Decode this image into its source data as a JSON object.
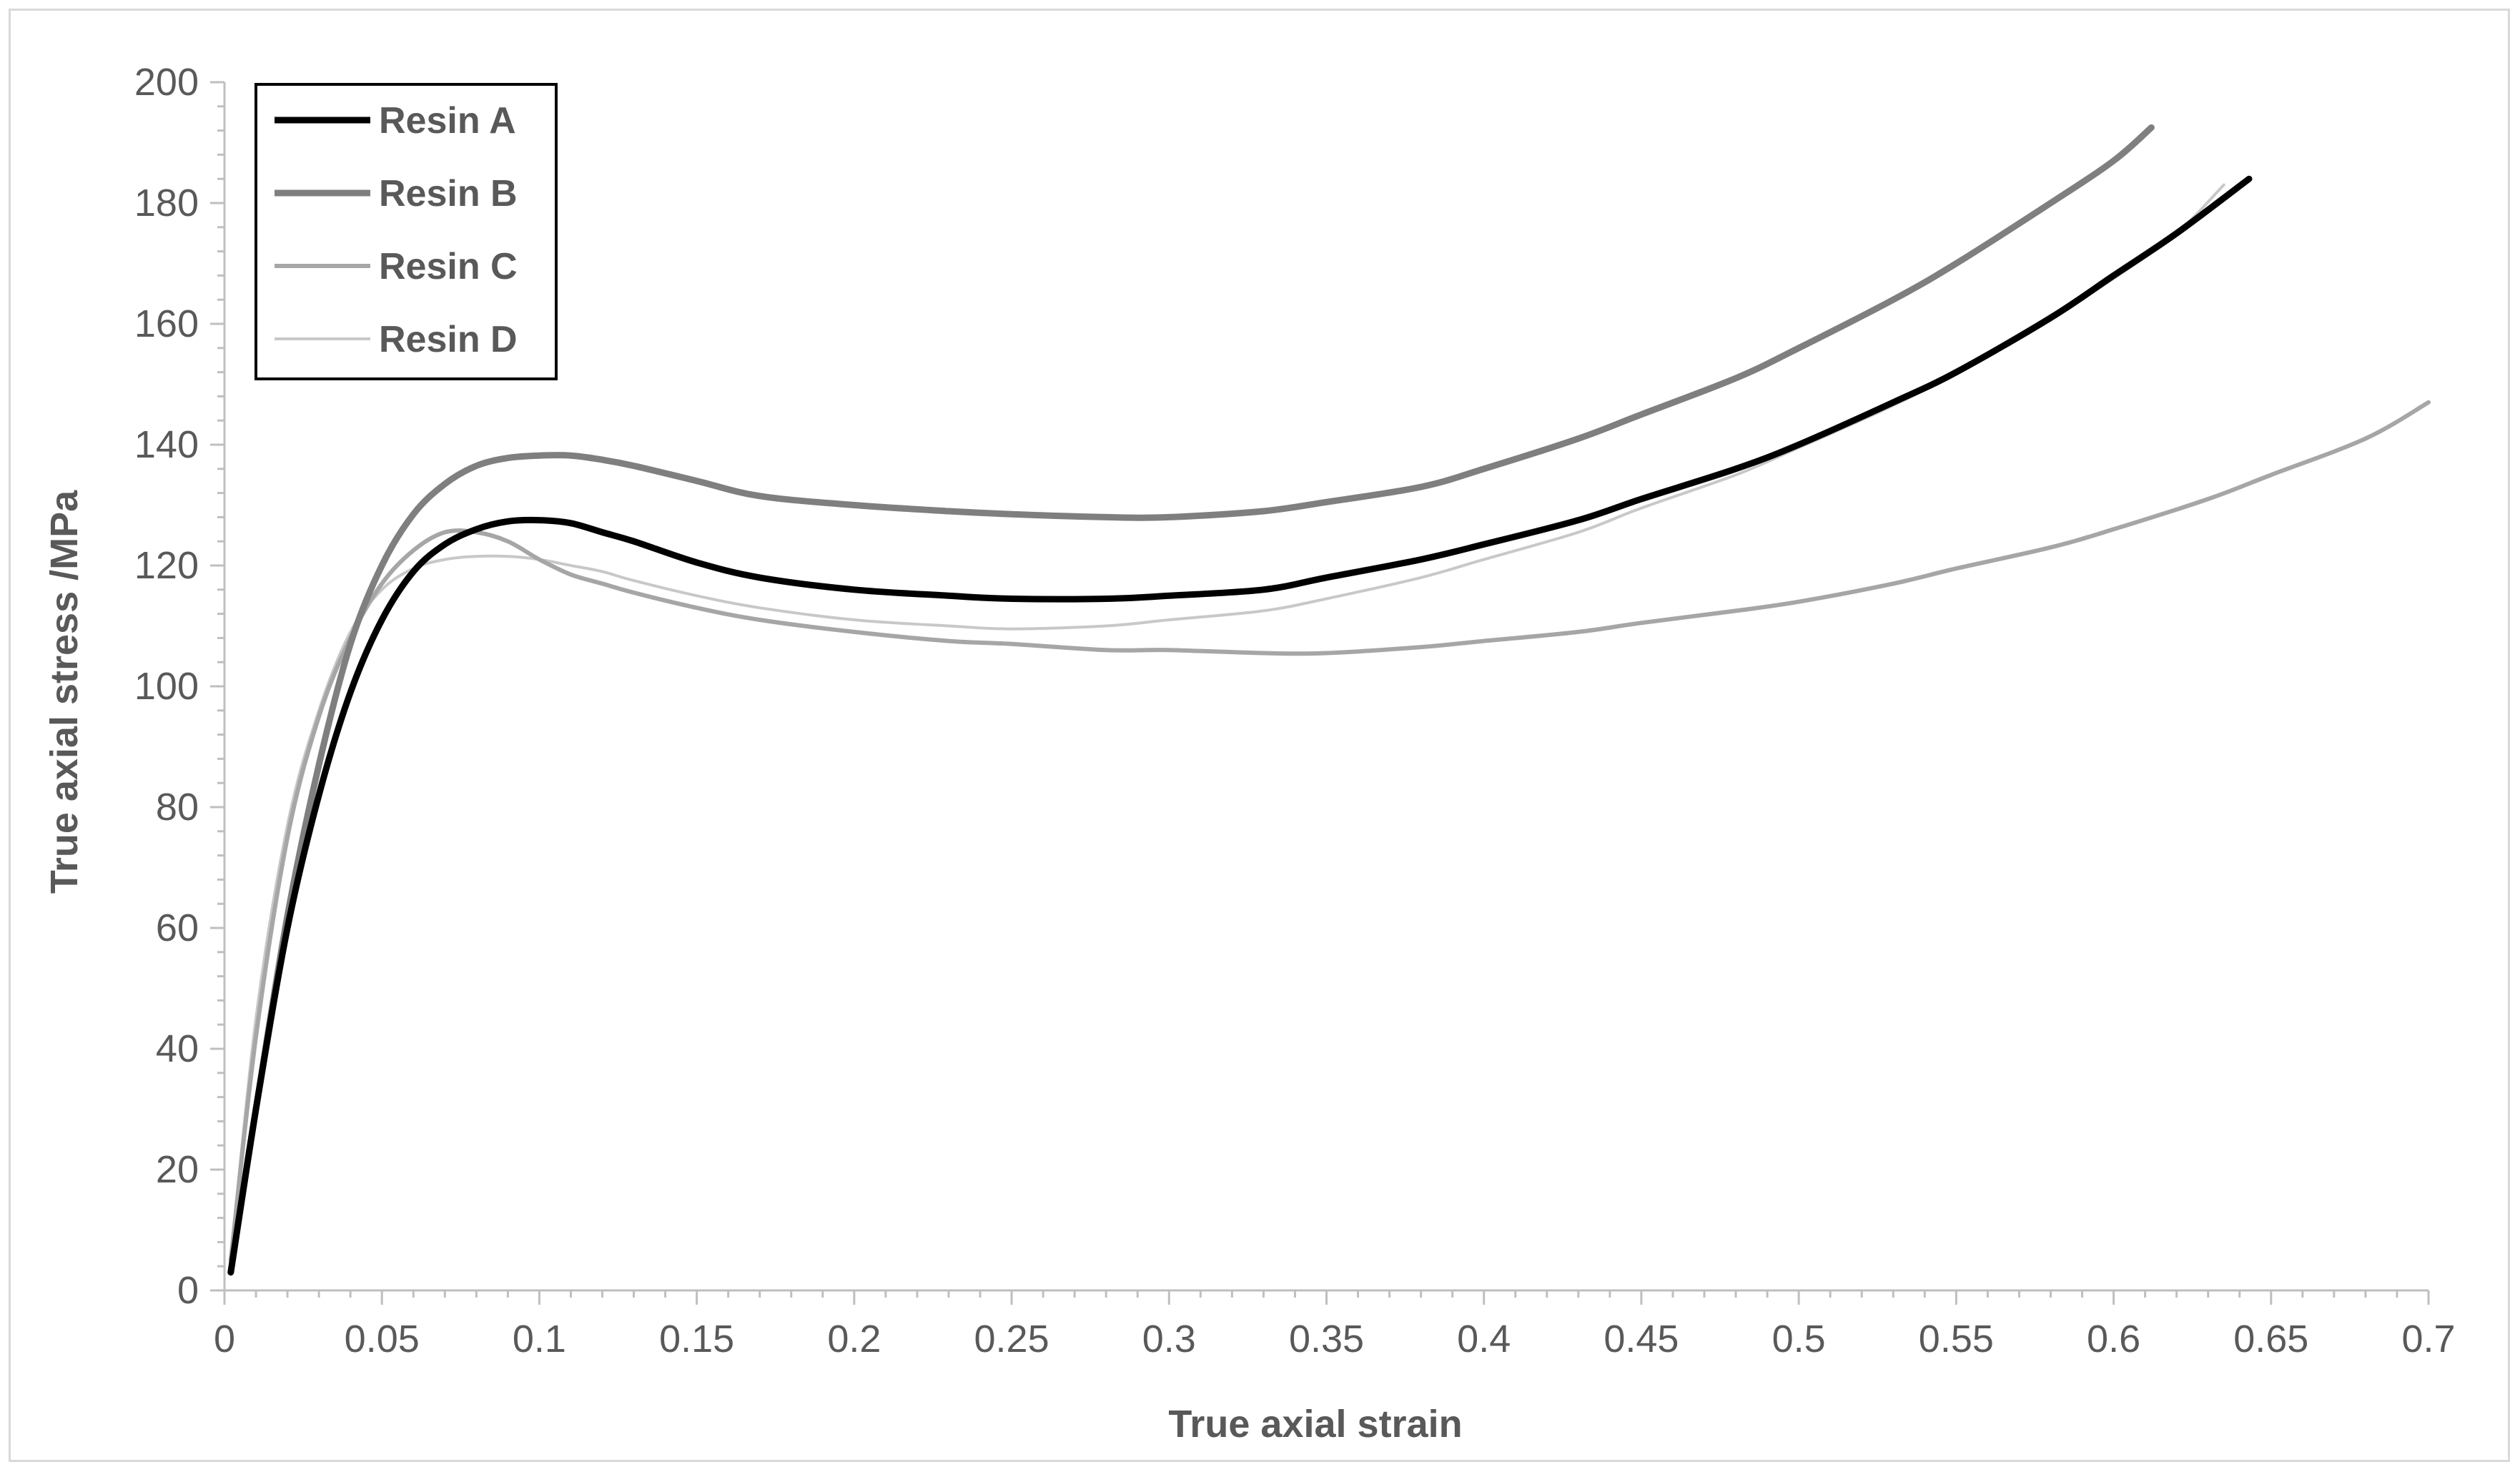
{
  "chart_data": {
    "type": "line",
    "title": "",
    "xlabel": "True axial strain",
    "ylabel": "True axial stress /MPa",
    "xlim": [
      0,
      0.7
    ],
    "ylim": [
      0,
      200
    ],
    "x_ticks": [
      "0",
      "0.05",
      "0.1",
      "0.15",
      "0.2",
      "0.25",
      "0.3",
      "0.35",
      "0.4",
      "0.45",
      "0.5",
      "0.55",
      "0.6",
      "0.65",
      "0.7"
    ],
    "y_ticks": [
      "0",
      "20",
      "40",
      "60",
      "80",
      "100",
      "120",
      "140",
      "160",
      "180",
      "200"
    ],
    "grid": false,
    "legend_position": "top-left",
    "series": [
      {
        "name": "Resin A",
        "color": "#000000",
        "x": [
          0.002,
          0.01,
          0.02,
          0.03,
          0.04,
          0.05,
          0.06,
          0.07,
          0.08,
          0.09,
          0.1,
          0.11,
          0.12,
          0.13,
          0.15,
          0.17,
          0.2,
          0.23,
          0.25,
          0.28,
          0.3,
          0.33,
          0.35,
          0.38,
          0.4,
          0.43,
          0.45,
          0.48,
          0.5,
          0.53,
          0.55,
          0.58,
          0.6,
          0.62,
          0.643
        ],
        "y": [
          3,
          30,
          60,
          82,
          99,
          111,
          119,
          123.5,
          126,
          127.3,
          127.5,
          127,
          125.5,
          124,
          120.5,
          118,
          116,
          115,
          114.5,
          114.5,
          115,
          116,
          118,
          121,
          123.5,
          127.5,
          131,
          136,
          140,
          147,
          152,
          161,
          168,
          175,
          184
        ]
      },
      {
        "name": "Resin B",
        "color": "#7f7f7f",
        "x": [
          0.002,
          0.01,
          0.02,
          0.03,
          0.04,
          0.05,
          0.06,
          0.07,
          0.08,
          0.09,
          0.1,
          0.11,
          0.12,
          0.13,
          0.15,
          0.17,
          0.2,
          0.23,
          0.25,
          0.28,
          0.3,
          0.33,
          0.35,
          0.38,
          0.4,
          0.43,
          0.45,
          0.48,
          0.5,
          0.53,
          0.55,
          0.58,
          0.6,
          0.612
        ],
        "y": [
          3,
          30,
          62,
          87,
          107,
          120,
          128.5,
          133.5,
          136.5,
          137.8,
          138.2,
          138.2,
          137.5,
          136.5,
          134,
          131.5,
          130,
          129,
          128.5,
          128,
          128,
          129,
          130.5,
          133,
          136,
          141,
          145,
          151,
          156,
          164,
          170,
          180,
          187,
          192.5
        ]
      },
      {
        "name": "Resin C",
        "color": "#a6a6a6",
        "x": [
          0.002,
          0.01,
          0.02,
          0.03,
          0.04,
          0.05,
          0.06,
          0.07,
          0.08,
          0.09,
          0.1,
          0.11,
          0.12,
          0.13,
          0.15,
          0.17,
          0.2,
          0.23,
          0.25,
          0.28,
          0.3,
          0.33,
          0.35,
          0.38,
          0.4,
          0.43,
          0.45,
          0.48,
          0.5,
          0.53,
          0.55,
          0.58,
          0.6,
          0.63,
          0.65,
          0.68,
          0.7
        ],
        "y": [
          5,
          42,
          75,
          95,
          108,
          117,
          122.5,
          125.5,
          125.5,
          124,
          121,
          118.5,
          117,
          115.5,
          113,
          111,
          109,
          107.5,
          107,
          106,
          106,
          105.5,
          105.5,
          106.5,
          107.5,
          109,
          110.5,
          112.5,
          114,
          117,
          119.5,
          123,
          126,
          131,
          135,
          141,
          147
        ]
      },
      {
        "name": "Resin D",
        "color": "#c8c8c8",
        "x": [
          0.002,
          0.01,
          0.02,
          0.03,
          0.04,
          0.05,
          0.06,
          0.07,
          0.08,
          0.09,
          0.1,
          0.11,
          0.12,
          0.13,
          0.15,
          0.17,
          0.2,
          0.23,
          0.25,
          0.28,
          0.3,
          0.33,
          0.35,
          0.38,
          0.4,
          0.43,
          0.45,
          0.48,
          0.5,
          0.53,
          0.55,
          0.58,
          0.6,
          0.62,
          0.635
        ],
        "y": [
          5,
          45,
          77,
          96,
          109,
          116,
          119.5,
          121,
          121.5,
          121.5,
          121,
          120,
          119,
          117.5,
          115,
          113,
          111,
          110,
          109.5,
          110,
          111,
          112.5,
          114.5,
          118,
          121,
          125.5,
          129.5,
          135,
          139.5,
          146.5,
          152,
          161,
          167.5,
          175,
          183
        ]
      }
    ]
  }
}
